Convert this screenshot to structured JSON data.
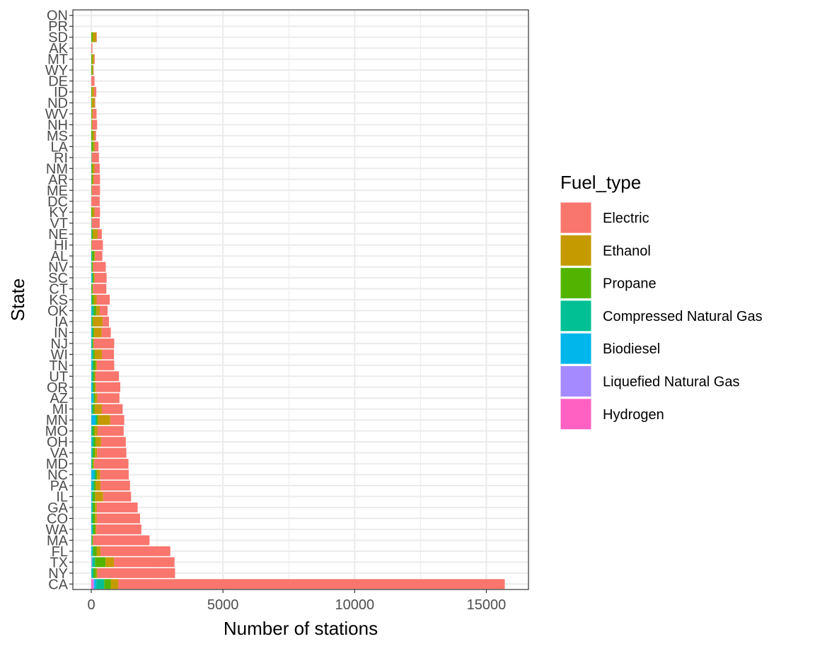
{
  "chart_data": {
    "type": "bar",
    "orientation": "horizontal",
    "stacked": true,
    "xlabel": "Number of stations",
    "ylabel": "State",
    "xlim": [
      -700,
      16600
    ],
    "x_ticks": [
      0,
      5000,
      10000,
      15000
    ],
    "x_tick_labels": [
      "0",
      "5000",
      "10000",
      "15000"
    ],
    "grid": true,
    "legend_title": "Fuel_type",
    "legend_position": "right",
    "categories": [
      "CA",
      "NY",
      "TX",
      "FL",
      "MA",
      "WA",
      "CO",
      "GA",
      "IL",
      "PA",
      "NC",
      "MD",
      "VA",
      "OH",
      "MO",
      "MN",
      "MI",
      "AZ",
      "OR",
      "UT",
      "TN",
      "WI",
      "NJ",
      "IN",
      "IA",
      "OK",
      "KS",
      "CT",
      "SC",
      "NV",
      "AL",
      "HI",
      "NE",
      "VT",
      "KY",
      "DC",
      "ME",
      "AR",
      "NM",
      "RI",
      "LA",
      "MS",
      "NH",
      "WV",
      "ND",
      "ID",
      "DE",
      "WY",
      "MT",
      "AK",
      "SD",
      "PR",
      "ON"
    ],
    "series": [
      {
        "name": "Hydrogen",
        "color": "#FF61C3",
        "values": [
          60,
          0,
          0,
          0,
          0,
          0,
          0,
          0,
          0,
          0,
          0,
          0,
          0,
          0,
          0,
          0,
          0,
          0,
          0,
          0,
          0,
          0,
          0,
          0,
          0,
          0,
          0,
          0,
          0,
          0,
          0,
          0,
          0,
          0,
          0,
          0,
          0,
          0,
          0,
          0,
          0,
          0,
          0,
          0,
          0,
          0,
          0,
          0,
          0,
          0,
          0,
          0,
          0
        ]
      },
      {
        "name": "Liquefied Natural Gas",
        "color": "#A58AFF",
        "values": [
          50,
          0,
          30,
          0,
          0,
          0,
          0,
          0,
          0,
          0,
          0,
          0,
          0,
          0,
          0,
          0,
          0,
          0,
          0,
          0,
          0,
          0,
          0,
          0,
          0,
          0,
          0,
          0,
          0,
          0,
          0,
          0,
          0,
          0,
          0,
          0,
          0,
          0,
          0,
          0,
          0,
          0,
          0,
          0,
          0,
          0,
          0,
          0,
          0,
          0,
          0,
          0,
          0
        ]
      },
      {
        "name": "Biodiesel",
        "color": "#00B6EB",
        "values": [
          80,
          20,
          10,
          30,
          0,
          30,
          0,
          20,
          20,
          40,
          100,
          0,
          20,
          30,
          0,
          150,
          20,
          60,
          40,
          20,
          30,
          30,
          10,
          20,
          0,
          30,
          0,
          0,
          20,
          0,
          0,
          0,
          0,
          0,
          0,
          0,
          0,
          0,
          0,
          0,
          0,
          0,
          0,
          0,
          0,
          0,
          0,
          0,
          0,
          0,
          0,
          0,
          0
        ]
      },
      {
        "name": "Compressed Natural Gas",
        "color": "#00C094",
        "values": [
          300,
          60,
          100,
          40,
          20,
          40,
          50,
          40,
          30,
          60,
          60,
          30,
          40,
          60,
          50,
          50,
          40,
          40,
          30,
          50,
          50,
          40,
          30,
          40,
          30,
          60,
          30,
          10,
          30,
          20,
          30,
          0,
          20,
          10,
          0,
          0,
          0,
          10,
          10,
          10,
          10,
          0,
          0,
          0,
          0,
          0,
          0,
          0,
          0,
          0,
          0,
          0,
          0
        ]
      },
      {
        "name": "Propane",
        "color": "#53B400",
        "values": [
          250,
          100,
          400,
          130,
          30,
          80,
          90,
          80,
          100,
          70,
          60,
          40,
          80,
          80,
          70,
          60,
          70,
          50,
          50,
          50,
          80,
          60,
          30,
          50,
          40,
          100,
          70,
          40,
          40,
          30,
          80,
          20,
          40,
          10,
          40,
          0,
          20,
          40,
          40,
          10,
          60,
          50,
          20,
          20,
          30,
          30,
          0,
          40,
          40,
          0,
          50,
          0,
          0
        ]
      },
      {
        "name": "Ethanol",
        "color": "#C49A00",
        "values": [
          280,
          50,
          320,
          150,
          20,
          40,
          70,
          70,
          300,
          180,
          120,
          40,
          80,
          200,
          120,
          460,
          270,
          80,
          60,
          40,
          50,
          270,
          20,
          280,
          360,
          130,
          100,
          10,
          40,
          20,
          40,
          0,
          180,
          0,
          80,
          0,
          0,
          40,
          70,
          0,
          60,
          70,
          20,
          40,
          100,
          70,
          0,
          30,
          60,
          0,
          140,
          0,
          0
        ]
      },
      {
        "name": "Electric",
        "color": "#F8766D",
        "values": [
          14680,
          2950,
          2300,
          2650,
          2140,
          1710,
          1640,
          1550,
          1060,
          1120,
          1080,
          1300,
          1110,
          940,
          990,
          530,
          790,
          840,
          920,
          890,
          660,
          460,
          780,
          350,
          240,
          300,
          500,
          510,
          450,
          480,
          270,
          420,
          160,
          300,
          210,
          320,
          310,
          240,
          200,
          270,
          140,
          60,
          180,
          140,
          20,
          90,
          120,
          20,
          30,
          40,
          20,
          0,
          0
        ]
      }
    ]
  }
}
